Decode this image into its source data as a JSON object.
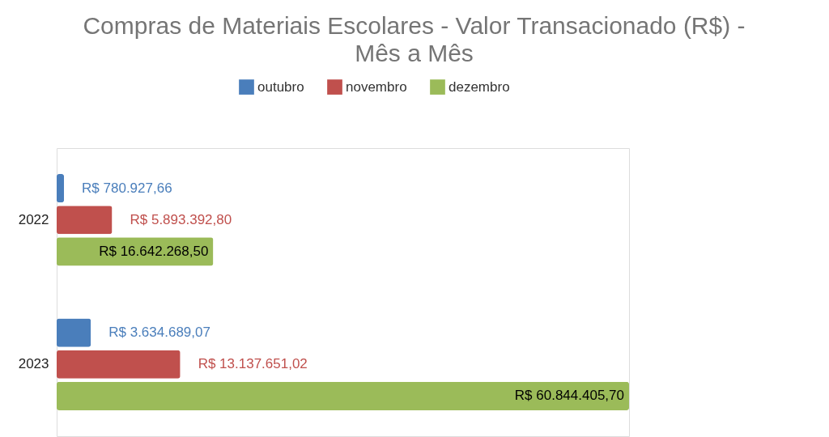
{
  "chart_data": {
    "type": "bar",
    "orientation": "horizontal",
    "title": "Compras de Materiais Escolares - Valor Transacionado (R$) - Mês a Mês",
    "categories": [
      "2022",
      "2023"
    ],
    "legend": "top",
    "series": [
      {
        "name": "outubro",
        "color": "#4a7ebb",
        "values": [
          780927.66,
          3634689.07
        ],
        "value_labels": [
          "R$ 780.927,66",
          "R$ 3.634.689,07"
        ]
      },
      {
        "name": "novembro",
        "color": "#c0504d",
        "values": [
          5893392.8,
          13137651.02
        ],
        "value_labels": [
          "R$ 5.893.392,80",
          "R$ 13.137.651,02"
        ]
      },
      {
        "name": "dezembro",
        "color": "#9bbb59",
        "values": [
          16642268.5,
          60844405.7
        ],
        "value_labels": [
          "R$ 16.642.268,50",
          "R$ 60.844.405,70"
        ]
      }
    ]
  }
}
